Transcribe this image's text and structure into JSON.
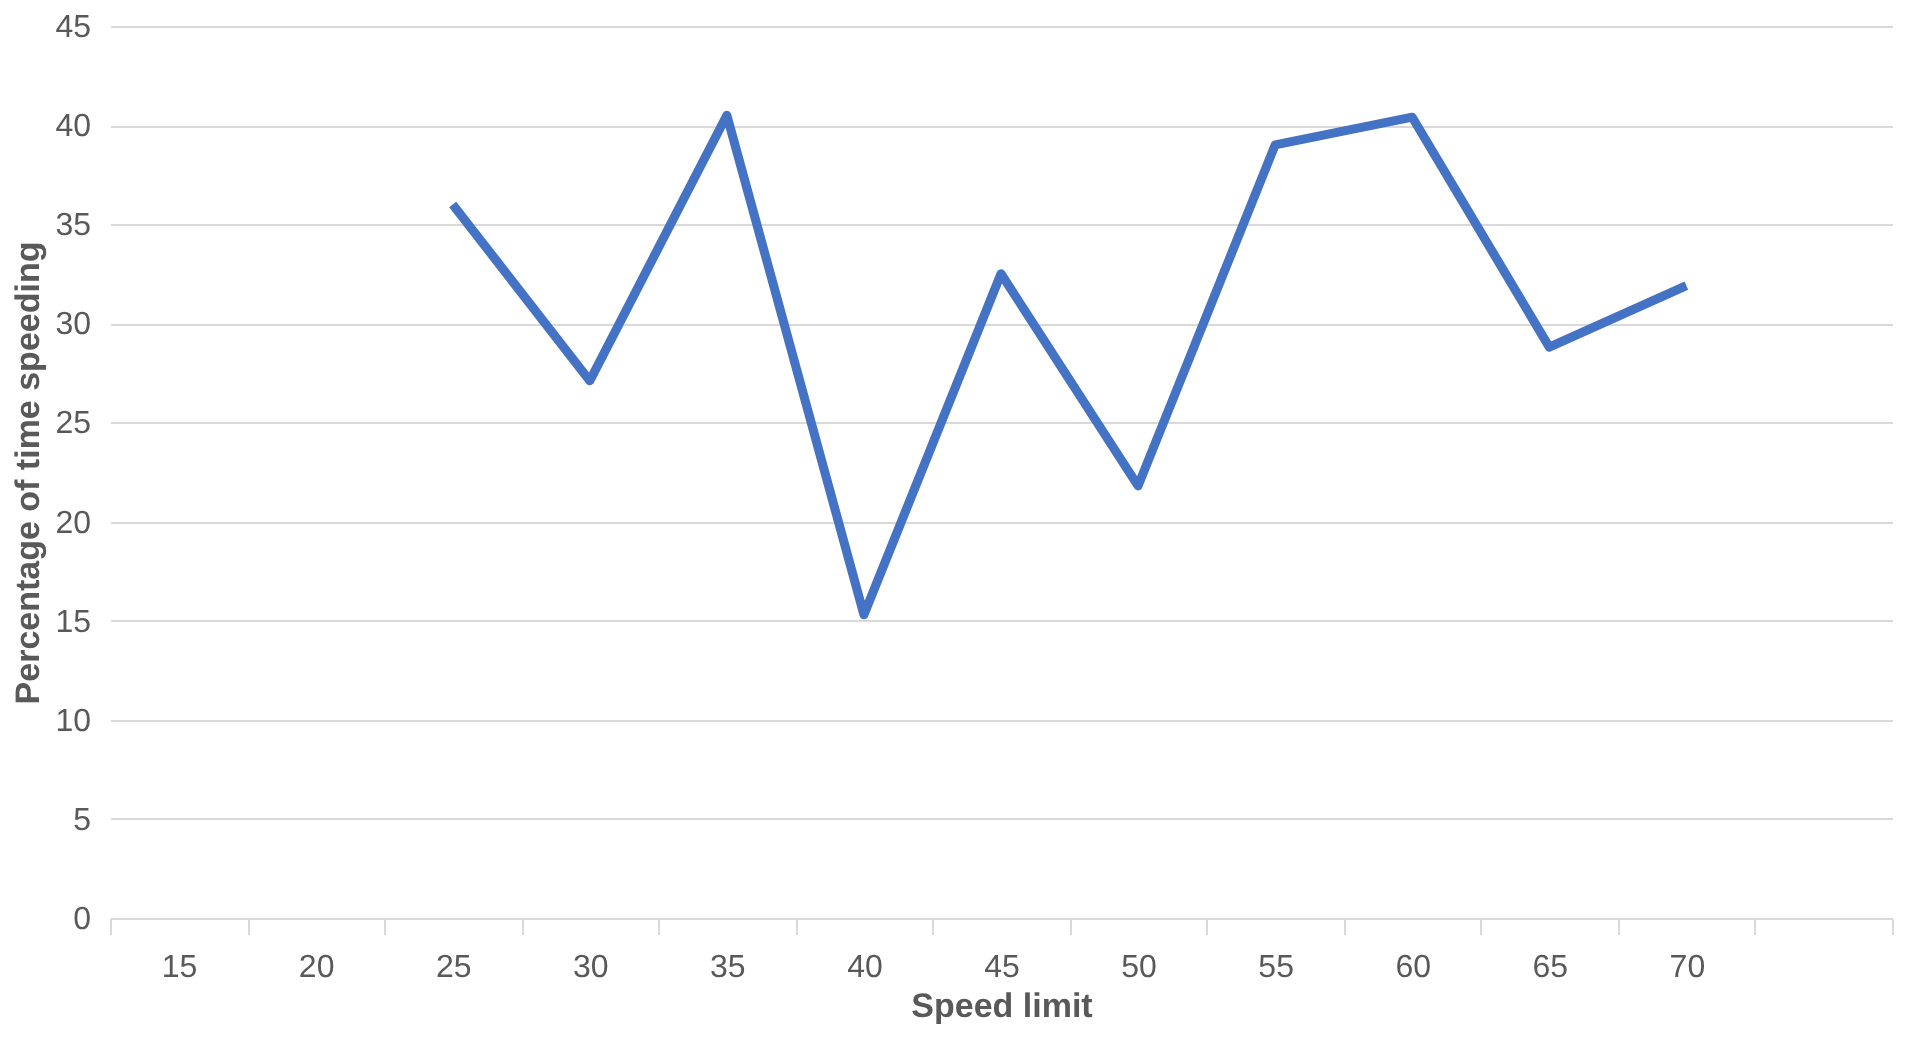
{
  "chart_data": {
    "type": "line",
    "xlabel": "Speed limit",
    "ylabel": "Percentage of time speeding",
    "categories": [
      "15",
      "20",
      "25",
      "30",
      "35",
      "40",
      "45",
      "50",
      "55",
      "60",
      "65",
      "70",
      null
    ],
    "series": [
      {
        "color": "#4472c4",
        "values": [
          null,
          null,
          36.0,
          27.1,
          40.5,
          15.3,
          32.5,
          21.8,
          39.0,
          40.4,
          28.8,
          31.9,
          null
        ]
      }
    ],
    "ylim": [
      0,
      45
    ],
    "yticks": [
      0,
      5,
      10,
      15,
      20,
      25,
      30,
      35,
      40,
      45
    ],
    "grid": "y",
    "marker": "none",
    "line_style": "solid"
  }
}
